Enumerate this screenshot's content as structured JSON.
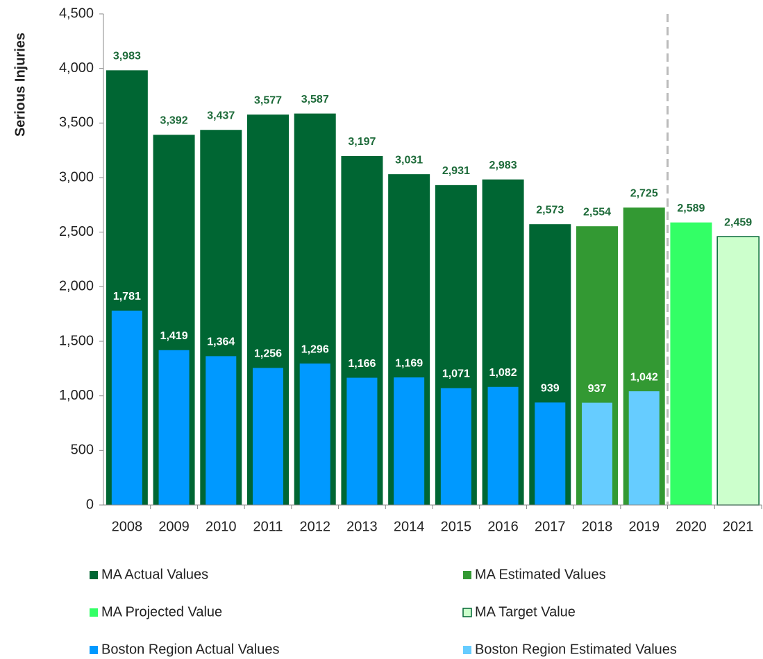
{
  "chart_data": {
    "type": "bar",
    "y_label": "Serious Injuries",
    "categories": [
      "2008",
      "2009",
      "2010",
      "2011",
      "2012",
      "2013",
      "2014",
      "2015",
      "2016",
      "2017",
      "2018",
      "2019",
      "2020",
      "2021"
    ],
    "ylim": [
      0,
      4500
    ],
    "yticks": [
      0,
      500,
      {
        "value": 1000,
        "label": "1,000"
      },
      {
        "value": 1500,
        "label": "1,500"
      },
      {
        "value": 2000,
        "label": "2,000"
      },
      {
        "value": 2500,
        "label": "2,500"
      },
      {
        "value": 3000,
        "label": "3,000"
      },
      {
        "value": 3500,
        "label": "3,500"
      },
      {
        "value": 4000,
        "label": "4,000"
      },
      {
        "value": 4500,
        "label": "4,500"
      }
    ],
    "series": [
      {
        "name": "MA Actual Values",
        "color": "#006633",
        "values": [
          3983,
          3392,
          3437,
          3577,
          3587,
          3197,
          3031,
          2931,
          2983,
          2573,
          null,
          null,
          null,
          null
        ],
        "value_labels": [
          "3,983",
          "3,392",
          "3,437",
          "3,577",
          "3,587",
          "3,197",
          "3,031",
          "2,931",
          "2,983",
          "2,573",
          null,
          null,
          null,
          null
        ]
      },
      {
        "name": "MA Estimated Values",
        "color": "#339933",
        "values": [
          null,
          null,
          null,
          null,
          null,
          null,
          null,
          null,
          null,
          null,
          2554,
          2725,
          null,
          null
        ],
        "value_labels": [
          null,
          null,
          null,
          null,
          null,
          null,
          null,
          null,
          null,
          null,
          "2,554",
          "2,725",
          null,
          null
        ]
      },
      {
        "name": "MA Projected Value",
        "color": "#33ff66",
        "values": [
          null,
          null,
          null,
          null,
          null,
          null,
          null,
          null,
          null,
          null,
          null,
          null,
          2589,
          null
        ],
        "value_labels": [
          null,
          null,
          null,
          null,
          null,
          null,
          null,
          null,
          null,
          null,
          null,
          null,
          "2,589",
          null
        ]
      },
      {
        "name": "MA Target Value",
        "color": "#ccffcc",
        "edgecolor": "#006633",
        "values": [
          null,
          null,
          null,
          null,
          null,
          null,
          null,
          null,
          null,
          null,
          null,
          null,
          null,
          2459
        ],
        "value_labels": [
          null,
          null,
          null,
          null,
          null,
          null,
          null,
          null,
          null,
          null,
          null,
          null,
          null,
          "2,459"
        ]
      },
      {
        "name": "Boston Region Actual Values",
        "color": "#0099ff",
        "values": [
          1781,
          1419,
          1364,
          1256,
          1296,
          1166,
          1169,
          1071,
          1082,
          939,
          null,
          null,
          null,
          null
        ],
        "value_labels": [
          "1,781",
          "1,419",
          "1,364",
          "1,256",
          "1,296",
          "1,166",
          "1,169",
          "1,071",
          "1,082",
          "939",
          null,
          null,
          null,
          null
        ]
      },
      {
        "name": "Boston Region Estimated Values",
        "color": "#66ccff",
        "values": [
          null,
          null,
          null,
          null,
          null,
          null,
          null,
          null,
          null,
          null,
          937,
          1042,
          null,
          null
        ],
        "value_labels": [
          null,
          null,
          null,
          null,
          null,
          null,
          null,
          null,
          null,
          null,
          "937",
          "1,042",
          null,
          null
        ]
      }
    ]
  }
}
